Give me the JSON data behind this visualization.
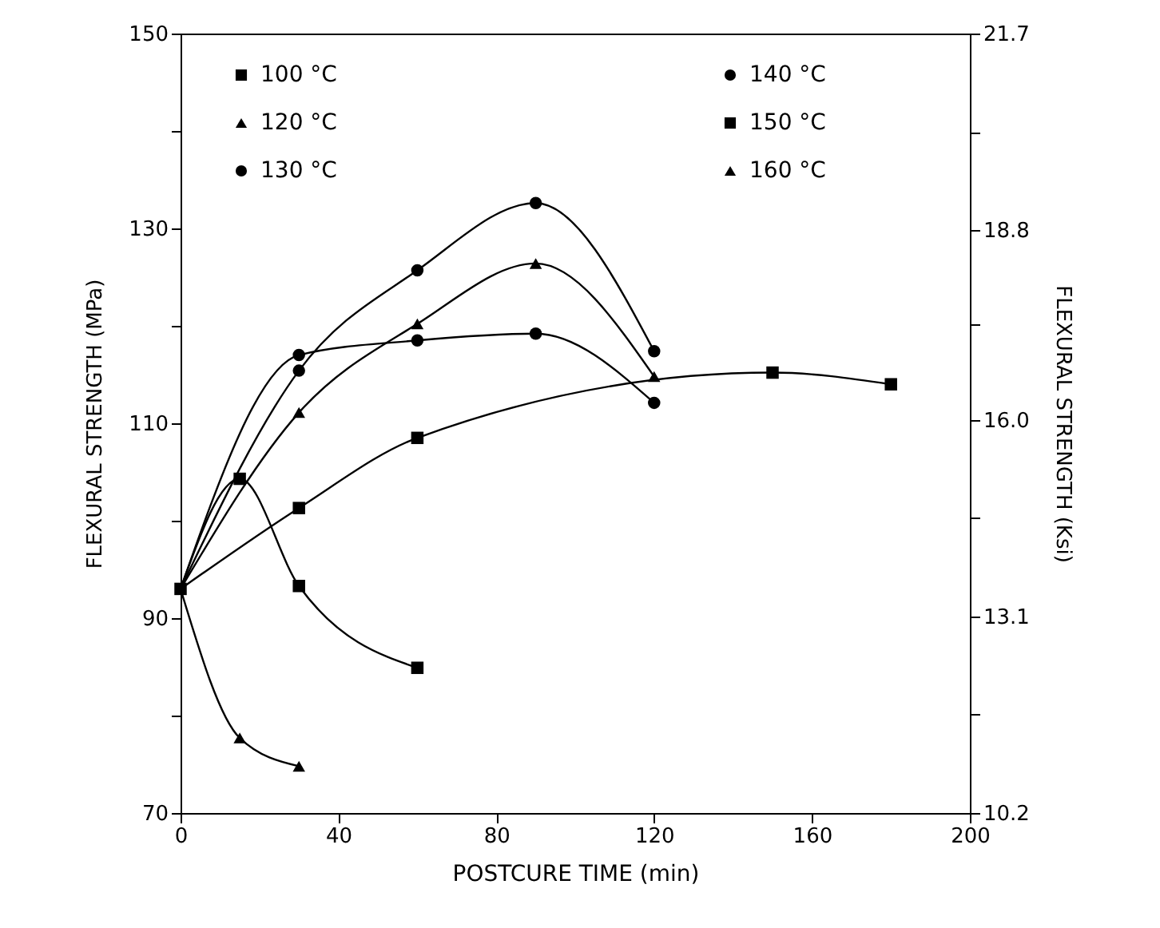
{
  "chart_data": {
    "type": "line",
    "xlabel": "POSTCURE TIME (min)",
    "ylabel": "FLEXURAL STRENGTH (MPa)",
    "y2label": "FLEXURAL STRENGTH (Ksi)",
    "xlim": [
      0,
      200
    ],
    "xticks": [
      0,
      40,
      80,
      120,
      160,
      200
    ],
    "ylim": [
      70,
      150
    ],
    "yticks": [
      70,
      {
        "value": 80,
        "label": null
      },
      90,
      {
        "value": 100,
        "label": null
      },
      110,
      {
        "value": 120,
        "label": null
      },
      130,
      {
        "value": 140,
        "label": null
      },
      150
    ],
    "y2lim": [
      10.2,
      21.7
    ],
    "y2ticks": [
      10.2,
      {
        "value": 11.65,
        "label": null
      },
      13.1,
      {
        "value": 14.55,
        "label": null
      },
      {
        "value": 16,
        "label": "16.0"
      },
      {
        "value": 17.4,
        "label": null
      },
      18.8,
      {
        "value": 20.25,
        "label": null
      },
      21.7
    ],
    "grid": false,
    "legend": "top",
    "line_style": "solid",
    "series": [
      {
        "name": "100 °C",
        "color": "#000000",
        "marker": "square",
        "x": [
          0,
          30,
          60,
          150,
          180
        ],
        "values": [
          93,
          101.3,
          108.5,
          115.2,
          114
        ]
      },
      {
        "name": "120 °C",
        "color": "#000000",
        "marker": "triangle",
        "x": [
          0,
          30,
          60,
          90,
          120
        ],
        "values": [
          93,
          111.1,
          120.2,
          126.4,
          114.8
        ]
      },
      {
        "name": "130 °C",
        "color": "#000000",
        "marker": "circle",
        "x": [
          0,
          30,
          60,
          90,
          120
        ],
        "values": [
          93,
          115.4,
          125.7,
          132.6,
          117.4
        ]
      },
      {
        "name": "140 °C",
        "color": "#000000",
        "marker": "circle",
        "x": [
          0,
          30,
          60,
          90,
          120
        ],
        "values": [
          93,
          117.0,
          118.5,
          119.2,
          112.1
        ]
      },
      {
        "name": "150 °C",
        "color": "#000000",
        "marker": "square",
        "x": [
          0,
          15,
          30,
          60
        ],
        "values": [
          93,
          104.3,
          93.3,
          84.9
        ]
      },
      {
        "name": "160 °C",
        "color": "#000000",
        "marker": "triangle",
        "x": [
          0,
          15,
          30
        ],
        "values": [
          93,
          77.7,
          74.8
        ]
      }
    ]
  }
}
